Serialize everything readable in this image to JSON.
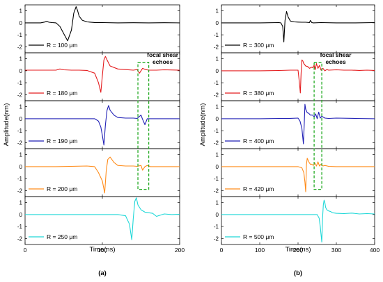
{
  "chart_data": [
    {
      "type": "line",
      "panel_label": "(a)",
      "xlabel": "Time(ns)",
      "ylabel": "Amplitude(nm)",
      "xlim": [
        0,
        200
      ],
      "xticks": [
        0,
        100,
        200
      ],
      "ylim": [
        -2.5,
        1.5
      ],
      "yticks": [
        "1",
        "0",
        "-1",
        "-2"
      ],
      "annotation": {
        "text": [
          "focal shear",
          "echoes"
        ],
        "box_x": [
          146,
          160
        ],
        "box_y": [
          -1.9,
          3.3
        ]
      },
      "subplots": [
        {
          "legend": "R = 100 μm",
          "color": "#000000",
          "series": {
            "name": "R = 100 μm",
            "x": [
              0,
              20,
              25,
              28,
              31,
              35,
              40,
              45,
              50,
              55,
              60,
              63,
              66,
              68,
              70,
              74,
              80,
              90,
              100,
              120,
              140,
              160,
              180,
              200
            ],
            "y": [
              0,
              0,
              0.06,
              0.12,
              0.05,
              0.02,
              0,
              -0.3,
              -0.9,
              -1.5,
              -0.6,
              0.8,
              1.35,
              1.0,
              0.55,
              0.22,
              0.08,
              0.03,
              0.02,
              0,
              0.01,
              0,
              0.01,
              0
            ]
          }
        },
        {
          "legend": "R = 180 μm",
          "color": "#e41a1c",
          "series": {
            "name": "R = 180 μm",
            "x": [
              0,
              40,
              45,
              50,
              60,
              70,
              80,
              90,
              95,
              98,
              100,
              102,
              104,
              106,
              110,
              120,
              130,
              140,
              145,
              148,
              152,
              156,
              160,
              170,
              180,
              200
            ],
            "y": [
              0.05,
              0.05,
              0.15,
              0.08,
              0.05,
              0.05,
              0.03,
              -0.2,
              -1.0,
              -1.8,
              -0.4,
              0.9,
              1.2,
              0.9,
              0.4,
              0.15,
              0.1,
              0.05,
              0.1,
              -0.2,
              0.2,
              0.1,
              0.05,
              0.05,
              0.08,
              0.05
            ]
          }
        },
        {
          "legend": "R = 190 μm",
          "color": "#1f1fb5",
          "series": {
            "name": "R = 190 μm",
            "x": [
              0,
              50,
              90,
              95,
              98,
              100,
              102,
              104,
              106,
              108,
              110,
              115,
              120,
              130,
              140,
              145,
              150,
              152,
              155,
              158,
              162,
              170,
              200
            ],
            "y": [
              0,
              0,
              0,
              -0.2,
              -0.7,
              -1.4,
              -2.2,
              -0.5,
              0.7,
              1.1,
              0.7,
              0.3,
              0.1,
              0.05,
              0.05,
              0.02,
              0.3,
              -0.05,
              -0.5,
              0,
              0,
              0,
              0
            ]
          }
        },
        {
          "legend": "R = 200 μm",
          "color": "#ff8c1a",
          "series": {
            "name": "R = 200 μm",
            "x": [
              0,
              40,
              80,
              90,
              95,
              100,
              103,
              105,
              107,
              110,
              115,
              120,
              130,
              140,
              145,
              150,
              152,
              155,
              158,
              162,
              170,
              180,
              200
            ],
            "y": [
              0,
              0,
              0.05,
              0,
              -0.5,
              -1.2,
              -2.2,
              -0.3,
              0.6,
              0.8,
              0.35,
              0.1,
              0.05,
              0.05,
              0.02,
              0.1,
              -0.3,
              0,
              0.1,
              0,
              0,
              0,
              0
            ]
          }
        },
        {
          "legend": "R = 250 μm",
          "color": "#1fd8d8",
          "series": {
            "name": "R = 250 μm",
            "x": [
              0,
              50,
              100,
              120,
              130,
              135,
              138,
              140,
              142,
              144,
              146,
              150,
              155,
              160,
              165,
              170,
              180,
              190,
              200
            ],
            "y": [
              0,
              0,
              0,
              0,
              -0.1,
              -0.8,
              -2.1,
              -0.3,
              1.1,
              1.4,
              0.8,
              0.4,
              0.2,
              0.15,
              0.1,
              -0.15,
              0.05,
              0,
              0.02
            ]
          }
        }
      ]
    },
    {
      "type": "line",
      "panel_label": "(b)",
      "xlabel": "Time(ns)",
      "ylabel": "Amplitude(nm)",
      "xlim": [
        0,
        400
      ],
      "xticks": [
        0,
        100,
        200,
        300,
        400
      ],
      "ylim": [
        -2.5,
        1.5
      ],
      "yticks": [
        "1",
        "0",
        "-1",
        "-2"
      ],
      "annotation": {
        "text": [
          "focal shear",
          "echoes"
        ],
        "box_x": [
          242,
          262
        ],
        "box_y": [
          -1.9,
          3.3
        ]
      },
      "subplots": [
        {
          "legend": "R = 300 μm",
          "color": "#000000",
          "series": {
            "name": "R = 300 μm",
            "x": [
              0,
              100,
              150,
              155,
              160,
              163,
              166,
              170,
              174,
              180,
              190,
              200,
              210,
              220,
              230,
              232,
              236,
              240,
              260,
              300,
              350,
              400
            ],
            "y": [
              0,
              0,
              0.02,
              0,
              -0.3,
              -1.6,
              0.2,
              0.95,
              0.5,
              0.15,
              0.08,
              0.06,
              0.05,
              0.05,
              0.02,
              0.2,
              0.02,
              0,
              0.02,
              0,
              0,
              0.02
            ]
          }
        },
        {
          "legend": "R = 380 μm",
          "color": "#e41a1c",
          "series": {
            "name": "R = 380 μm",
            "x": [
              0,
              100,
              150,
              180,
              200,
              203,
              206,
              208,
              210,
              212,
              215,
              220,
              225,
              230,
              235,
              238,
              242,
              245,
              248,
              252,
              256,
              260,
              265,
              270,
              275,
              280,
              300,
              320,
              340,
              360,
              380,
              400
            ],
            "y": [
              0,
              0,
              0.02,
              0.05,
              0.05,
              -0.8,
              -1.85,
              -0.2,
              0.9,
              0.85,
              0.6,
              0.4,
              0.35,
              0.2,
              0.3,
              0.25,
              0.45,
              0.1,
              0.6,
              0.2,
              0.45,
              0.05,
              0.2,
              0,
              0.1,
              0.05,
              0.08,
              0.05,
              0.05,
              0.03,
              0.05,
              0.03
            ]
          }
        },
        {
          "legend": "R = 400 μm",
          "color": "#1f1fb5",
          "series": {
            "name": "R = 400 μm",
            "x": [
              0,
              100,
              150,
              180,
              200,
              205,
              210,
              214,
              216,
              218,
              220,
              224,
              228,
              232,
              238,
              242,
              246,
              250,
              254,
              258,
              262,
              270,
              280,
              300,
              350,
              400
            ],
            "y": [
              0,
              0,
              0.02,
              0.03,
              0.05,
              -0.2,
              -0.8,
              -2.1,
              -0.6,
              1.2,
              0.8,
              0.5,
              0.45,
              0.3,
              0.3,
              0.15,
              0.4,
              0,
              0.55,
              0.05,
              0.2,
              0.05,
              0.02,
              0.05,
              0.02,
              0
            ]
          }
        },
        {
          "legend": "R = 420 μm",
          "color": "#ff8c1a",
          "series": {
            "name": "R = 420 μm",
            "x": [
              0,
              100,
              150,
              200,
              210,
              215,
              218,
              220,
              222,
              224,
              228,
              232,
              236,
              240,
              244,
              248,
              252,
              256,
              260,
              265,
              270,
              280,
              300,
              350,
              400
            ],
            "y": [
              0,
              0,
              0,
              0,
              -0.1,
              -0.5,
              -1.3,
              -2.1,
              0.2,
              0.7,
              0.4,
              0.2,
              0.2,
              0.1,
              0.3,
              0.05,
              0.4,
              0.05,
              0.2,
              0.05,
              0.1,
              0.02,
              0,
              0,
              0
            ]
          }
        },
        {
          "legend": "R = 500 μm",
          "color": "#1fd8d8",
          "series": {
            "name": "R = 500 μm",
            "x": [
              0,
              100,
              200,
              250,
              255,
              258,
              262,
              264,
              266,
              268,
              270,
              272,
              275,
              280,
              285,
              290,
              300,
              320,
              340,
              360,
              380,
              400
            ],
            "y": [
              0,
              0,
              0,
              0,
              -0.3,
              -1.0,
              -2.3,
              -0.3,
              0.8,
              1.2,
              1.0,
              0.6,
              0.4,
              0.3,
              0.25,
              0.15,
              0.1,
              0.08,
              0.12,
              0.05,
              0.08,
              0.05
            ]
          }
        }
      ]
    }
  ]
}
